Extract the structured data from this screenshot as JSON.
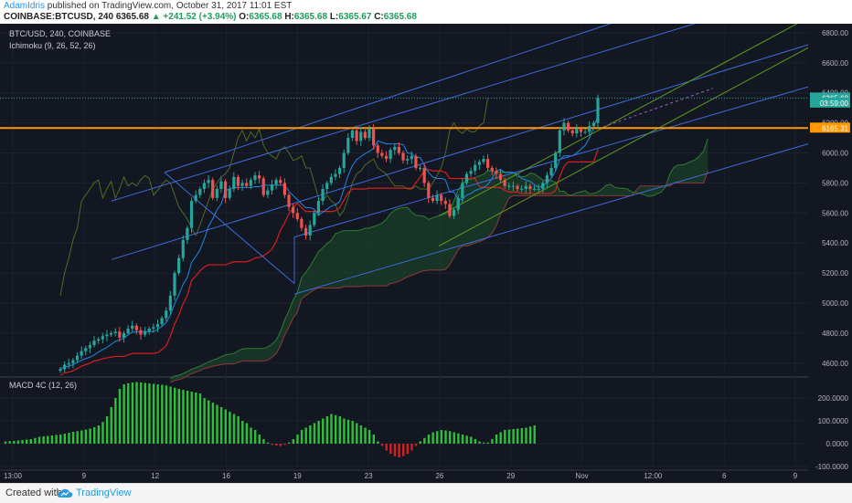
{
  "header": {
    "author": "AdamIdris",
    "published_text": "published on TradingView.com, October 31, 2017 11:01 EST",
    "symbol_line_prefix": "COINBASE:BTCUSD, 240",
    "last": "6365.68",
    "change": "▲ +241.52 (+3.94%)",
    "o_label": "O:",
    "o_val": "6365.68",
    "h_label": "H:",
    "h_val": "6365.68",
    "l_label": "L:",
    "l_val": "6365.67",
    "c_label": "C:",
    "c_val": "6365.68"
  },
  "main_panel": {
    "symbol_title": "BTC/USD, 240, COINBASE",
    "indicator_title": "Ichimoku (9, 26, 52, 26)"
  },
  "macd_panel": {
    "title": "MACD 4C (12, 26)"
  },
  "footer": {
    "created_with": "Created with",
    "brand": "TradingView"
  },
  "colors": {
    "background": "#131722",
    "up_candle": "#26a69a",
    "down_candle": "#ef5350",
    "channel": "#3d6bd8",
    "green_channel": "#5d9c1e",
    "horizontal_level": "#ff9800",
    "macd_up": "#2fbf3a",
    "macd_down": "#d32020"
  },
  "chart_data": {
    "type": "candlestick",
    "price_axis_ticks": [
      "6800.00",
      "6600.00",
      "6400.00",
      "6200.00",
      "6000.00",
      "5800.00",
      "5600.00",
      "5400.00",
      "5200.00",
      "5000.00",
      "4800.00",
      "4600.00"
    ],
    "price_ylim": [
      4520,
      6860
    ],
    "macd_axis_ticks": [
      "200.0000",
      "100.0000",
      "0.0000",
      "-100.0000"
    ],
    "macd_ylim": [
      -100,
      260
    ],
    "time_axis_labels": [
      "13:00",
      "9",
      "12",
      "16",
      "19",
      "23",
      "26",
      "29",
      "Nov",
      "12:00",
      "6",
      "9"
    ],
    "price_labels": [
      {
        "text": "6365.68",
        "value": 6365.68,
        "kind": "last"
      },
      {
        "text": "03:59:00",
        "value": 6332,
        "kind": "countdown"
      },
      {
        "text": "6165.31",
        "value": 6165.31,
        "kind": "level"
      }
    ],
    "horizontal_level": 6165.31,
    "candles_closes": [
      4560,
      4590,
      4600,
      4620,
      4650,
      4680,
      4700,
      4720,
      4750,
      4760,
      4780,
      4790,
      4800,
      4810,
      4770,
      4800,
      4830,
      4850,
      4820,
      4790,
      4810,
      4830,
      4840,
      4860,
      4900,
      4950,
      5050,
      5200,
      5300,
      5420,
      5500,
      5680,
      5720,
      5760,
      5800,
      5820,
      5700,
      5760,
      5810,
      5700,
      5760,
      5840,
      5780,
      5800,
      5780,
      5820,
      5850,
      5830,
      5720,
      5750,
      5790,
      5820,
      5800,
      5720,
      5640,
      5600,
      5560,
      5500,
      5450,
      5520,
      5600,
      5680,
      5760,
      5800,
      5840,
      5860,
      5900,
      6000,
      6100,
      6150,
      6080,
      6140,
      6100,
      6160,
      6050,
      6000,
      5980,
      5960,
      6020,
      6040,
      6000,
      5950,
      5960,
      5980,
      5900,
      5900,
      5800,
      5700,
      5680,
      5720,
      5680,
      5660,
      5580,
      5620,
      5700,
      5800,
      5860,
      5880,
      5920,
      5940,
      5960,
      5900,
      5880,
      5860,
      5820,
      5780,
      5780,
      5780,
      5760,
      5760,
      5780,
      5760,
      5760,
      5760,
      5800,
      5850,
      5900,
      6000,
      6150,
      6200,
      6150,
      6130,
      6160,
      6140,
      6140,
      6180,
      6200,
      6366
    ],
    "macd_histogram": [
      10,
      11,
      12,
      14,
      16,
      18,
      20,
      25,
      30,
      32,
      34,
      36,
      38,
      40,
      44,
      48,
      52,
      55,
      58,
      62,
      66,
      72,
      80,
      95,
      120,
      160,
      200,
      240,
      260,
      265,
      268,
      270,
      268,
      266,
      264,
      262,
      260,
      258,
      255,
      250,
      245,
      240,
      236,
      232,
      228,
      224,
      220,
      200,
      190,
      180,
      170,
      160,
      150,
      140,
      130,
      120,
      100,
      90,
      70,
      60,
      40,
      20,
      5,
      -5,
      -8,
      -10,
      -5,
      5,
      20,
      40,
      60,
      70,
      80,
      90,
      100,
      110,
      120,
      130,
      125,
      120,
      110,
      105,
      100,
      90,
      80,
      70,
      60,
      40,
      10,
      -10,
      -30,
      -45,
      -55,
      -60,
      -55,
      -45,
      -30,
      -10,
      10,
      25,
      40,
      50,
      55,
      60,
      58,
      55,
      50,
      45,
      40,
      35,
      30,
      20,
      10,
      5,
      5,
      20,
      40,
      50,
      60,
      62,
      64,
      66,
      68,
      70,
      75,
      80
    ]
  }
}
